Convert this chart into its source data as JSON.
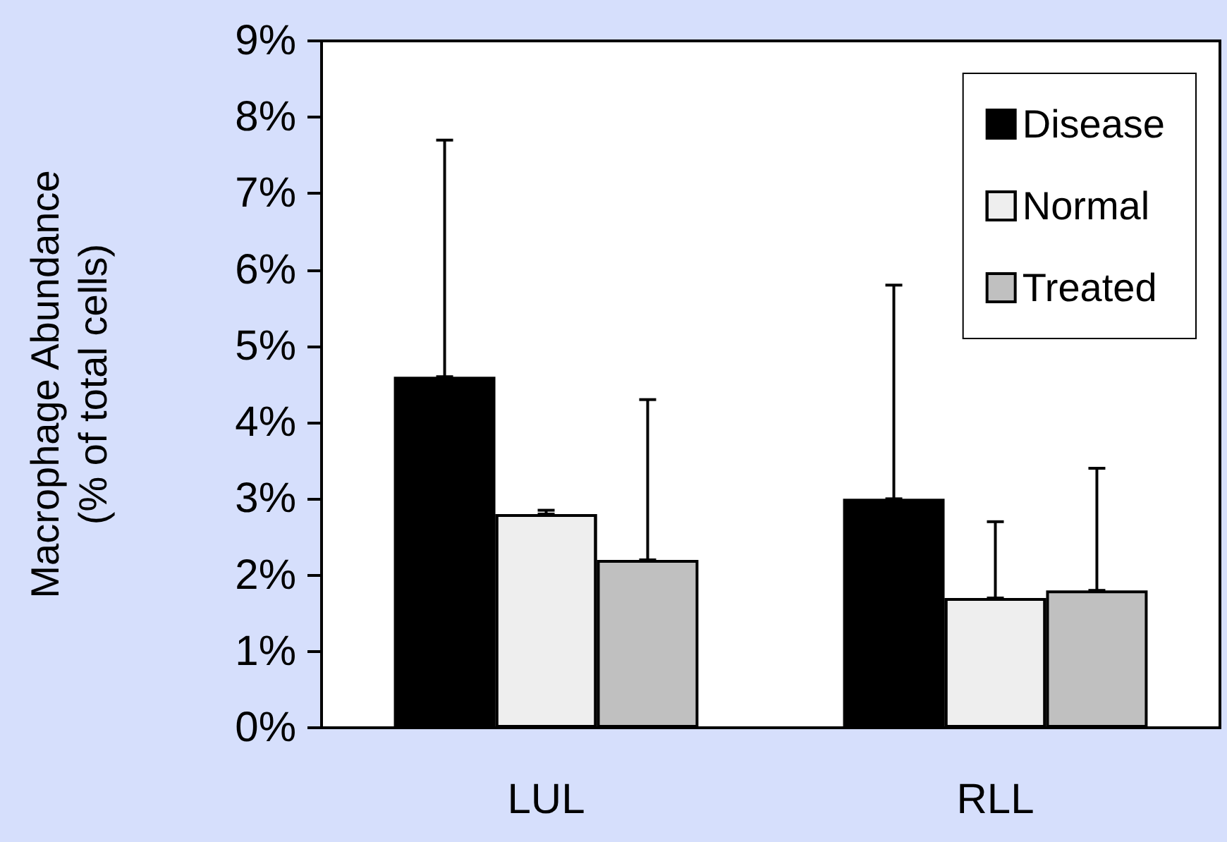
{
  "chart_data": {
    "type": "bar",
    "ylabel": "Macrophage Abundance\n(% of total cells)",
    "categories": [
      "LUL",
      "RLL"
    ],
    "series": [
      {
        "name": "Disease",
        "color": "#000000",
        "values": [
          4.6,
          3.0
        ],
        "errors": [
          [
            4.6,
            7.7
          ],
          [
            3.0,
            5.8
          ]
        ]
      },
      {
        "name": "Normal",
        "color": "#eeeeee",
        "values": [
          2.8,
          1.7
        ],
        "errors": [
          [
            2.8,
            2.85
          ],
          [
            1.7,
            2.7
          ]
        ]
      },
      {
        "name": "Treated",
        "color": "#c0c0c0",
        "values": [
          2.2,
          1.8
        ],
        "errors": [
          [
            2.2,
            4.3
          ],
          [
            1.8,
            3.4
          ]
        ]
      }
    ],
    "ylim": [
      0,
      9
    ],
    "yticks": [
      {
        "value": 0,
        "label": "0%"
      },
      {
        "value": 1,
        "label": "1%"
      },
      {
        "value": 2,
        "label": "2%"
      },
      {
        "value": 3,
        "label": "3%"
      },
      {
        "value": 4,
        "label": "4%"
      },
      {
        "value": 5,
        "label": "5%"
      },
      {
        "value": 6,
        "label": "6%"
      },
      {
        "value": 7,
        "label": "7%"
      },
      {
        "value": 8,
        "label": "8%"
      },
      {
        "value": 9,
        "label": "9%"
      }
    ],
    "grid": false,
    "legend": "top right"
  }
}
